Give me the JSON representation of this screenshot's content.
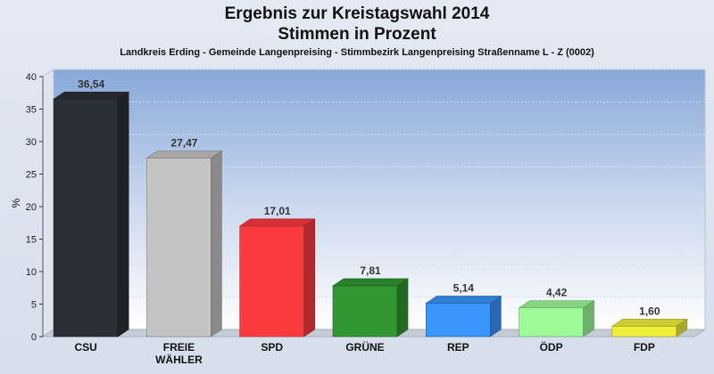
{
  "chart_data": {
    "type": "bar",
    "title": "Ergebnis zur Kreistagswahl 2014",
    "title2": "Stimmen in Prozent",
    "subtitle": "Landkreis Erding - Gemeinde Langenpreising - Stimmbezirk Langenpreising Straßenname L - Z (0002)",
    "ylabel": "%",
    "ylim": [
      0,
      40
    ],
    "yticks": [
      0,
      5,
      10,
      15,
      20,
      25,
      30,
      35,
      40
    ],
    "categories": [
      "CSU",
      "FREIE\nWÄHLER",
      "SPD",
      "GRÜNE",
      "REP",
      "ÖDP",
      "FDP"
    ],
    "values": [
      36.54,
      27.47,
      17.01,
      7.81,
      5.14,
      4.42,
      1.6
    ],
    "value_labels": [
      "36,54",
      "27,47",
      "17,01",
      "7,81",
      "5,14",
      "4,42",
      "1,60"
    ],
    "colors": [
      "#2b2f36",
      "#c4c4c4",
      "#fb3a3f",
      "#329632",
      "#3a95fb",
      "#9cfb96",
      "#f0f03a"
    ],
    "grid": true
  }
}
